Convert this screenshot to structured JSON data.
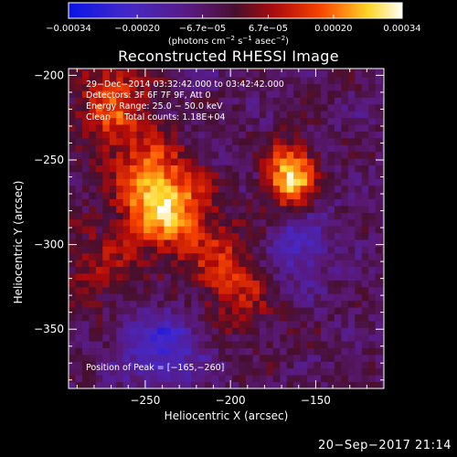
{
  "chart_data": {
    "type": "heatmap",
    "title": "Reconstructed RHESSI Image",
    "xlabel": "Heliocentric X (arcsec)",
    "ylabel": "Heliocentric Y (arcsec)",
    "xlim": [
      -295,
      -110
    ],
    "ylim": [
      -385,
      -196
    ],
    "x_ticks": [
      {
        "value": -250,
        "label": "−250"
      },
      {
        "value": -200,
        "label": "−200"
      },
      {
        "value": -150,
        "label": "−150"
      }
    ],
    "y_ticks": [
      {
        "value": -200,
        "label": "−200"
      },
      {
        "value": -250,
        "label": "−250"
      },
      {
        "value": -300,
        "label": "−300"
      },
      {
        "value": -350,
        "label": "−350"
      }
    ],
    "colorbar": {
      "range": [
        -0.00034,
        0.00034
      ],
      "ticks": [
        {
          "value": -0.00034,
          "label": "−0.00034"
        },
        {
          "value": -0.0002,
          "label": "−0.00020"
        },
        {
          "value": -6.7e-05,
          "label": "−6.7e−05"
        },
        {
          "value": 6.7e-05,
          "label": "6.7e−05"
        },
        {
          "value": 0.0002,
          "label": "0.00020"
        },
        {
          "value": 0.00034,
          "label": "0.00034"
        }
      ],
      "unit_prefix": "(photons cm",
      "unit_exp1": "−2",
      "unit_mid1": " s",
      "unit_exp2": "−1",
      "unit_mid2": " asec",
      "unit_exp3": "−2",
      "unit_suffix": ")"
    },
    "sources": [
      {
        "x": -165,
        "y": -260,
        "peak": 0.00034
      },
      {
        "x": -243,
        "y": -275,
        "peak": 0.00026
      },
      {
        "x": -268,
        "y": -215,
        "peak": 0.00018
      },
      {
        "x": -200,
        "y": -325,
        "peak": 0.00012
      },
      {
        "x": -278,
        "y": -315,
        "peak": 0.0001
      }
    ],
    "annotations": [
      "29−Dec−2014 03:32:42.000 to 03:42:42.000",
      "Detectors: 3F 6F 7F 9F, Att 0",
      "Energy Range: 25.0 − 50.0 keV",
      "Clean     Total counts: 1.18E+04"
    ],
    "peak_label": "Position of Peak = [−165,−260]"
  },
  "footer": "20−Sep−2017 21:14"
}
